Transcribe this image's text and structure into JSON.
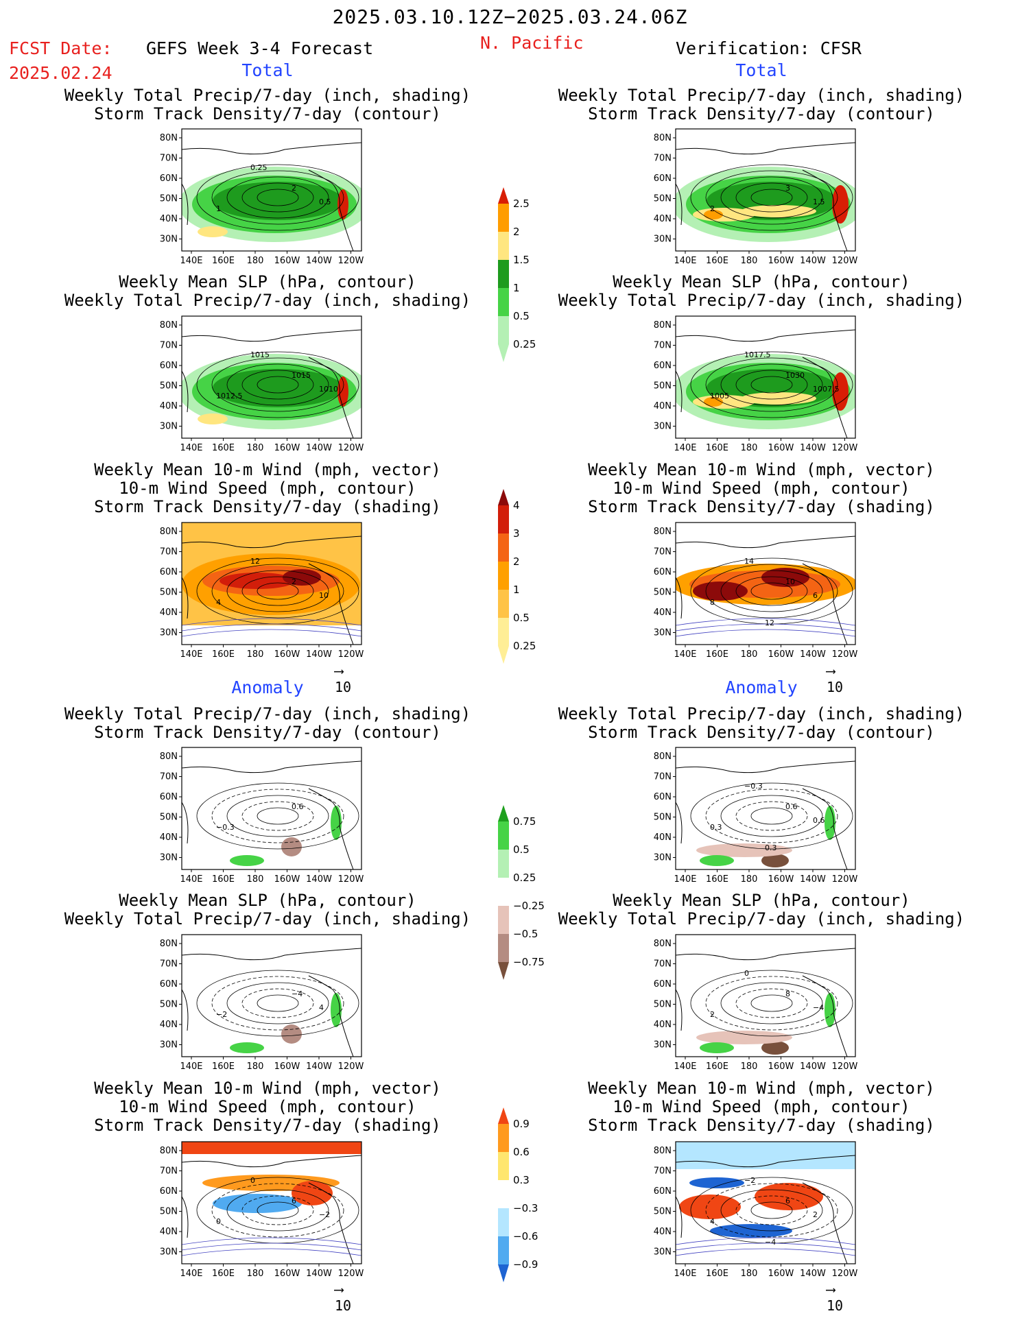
{
  "header": {
    "period": "2025.03.10.12Z−2025.03.24.06Z",
    "fcst_label": "FCST Date:",
    "fcst_date": "2025.02.24",
    "model": "GEFS Week 3-4 Forecast",
    "region": "N. Pacific",
    "verification": "Verification: CFSR"
  },
  "sections": {
    "total": "Total",
    "anomaly": "Anomaly"
  },
  "titles": {
    "precip_storm": "Weekly Total Precip/7-day (inch, shading)\nStorm Track Density/7-day (contour)",
    "slp_precip": "Weekly Mean SLP (hPa, contour)\nWeekly Total Precip/7-day (inch, shading)",
    "wind_storm": "Weekly Mean 10-m Wind (mph, vector)\n10-m Wind Speed (mph, contour)\nStorm Track Density/7-day (shading)"
  },
  "axes": {
    "lat_ticks": [
      "80N",
      "70N",
      "60N",
      "50N",
      "40N",
      "30N"
    ],
    "lon_ticks": [
      "140E",
      "160E",
      "180",
      "160W",
      "140W",
      "120W"
    ]
  },
  "vector_ref": "10",
  "colorbars": {
    "precip_total": {
      "labels": [
        "2.5",
        "2",
        "1.5",
        "1",
        "0.5",
        "0.25"
      ],
      "colors": [
        "#d81e05",
        "#ff9d00",
        "#ffe680",
        "#1e9b1e",
        "#46d346",
        "#b4f0b4"
      ]
    },
    "storm_total": {
      "labels": [
        "4",
        "3",
        "2",
        "1",
        "0.5",
        "0.25"
      ],
      "colors": [
        "#8c0a0a",
        "#d21e0a",
        "#f46414",
        "#ffa000",
        "#ffc346",
        "#ffee96"
      ]
    },
    "precip_anom": {
      "labels": [
        "0.75",
        "0.5",
        "0.25",
        "−0.25",
        "−0.5",
        "−0.75"
      ],
      "colors": [
        "#1ea01e",
        "#46d346",
        "#b4f0b4",
        "#ffffff",
        "#e6c3b9",
        "#b48c82",
        "#78503c"
      ]
    },
    "storm_anom": {
      "labels": [
        "0.9",
        "0.6",
        "0.3",
        "−0.3",
        "−0.6",
        "−0.9"
      ],
      "colors": [
        "#f04614",
        "#ff9a1e",
        "#ffe66e",
        "#ffffff",
        "#b4e6ff",
        "#50aaf0",
        "#1e64d2"
      ]
    }
  },
  "contour_labels": {
    "r1_left": [
      "2",
      "1",
      "0.5",
      "0.25"
    ],
    "r1_right": [
      "3",
      "2",
      "1.5"
    ],
    "r2_left": [
      "1015",
      "1012.5",
      "1010",
      "1015"
    ],
    "r2_right": [
      "1030",
      "1005",
      "1007.5",
      "1017.5"
    ],
    "r3_left": [
      "2",
      "4",
      "10",
      "12"
    ],
    "r3_right": [
      "10",
      "8",
      "6",
      "14",
      "12"
    ],
    "r4_left": [
      "0.6",
      "−0.3"
    ],
    "r4_right": [
      "0.6",
      "0.3",
      "0.6",
      "−0.3",
      "0.3"
    ],
    "r5_left": [
      "−4",
      "−2",
      "4"
    ],
    "r5_right": [
      "8",
      "2",
      "−4",
      "0"
    ],
    "r6_left": [
      "6",
      "0",
      "−2",
      "0"
    ],
    "r6_right": [
      "6",
      "4",
      "2",
      "−2",
      "−4"
    ]
  }
}
